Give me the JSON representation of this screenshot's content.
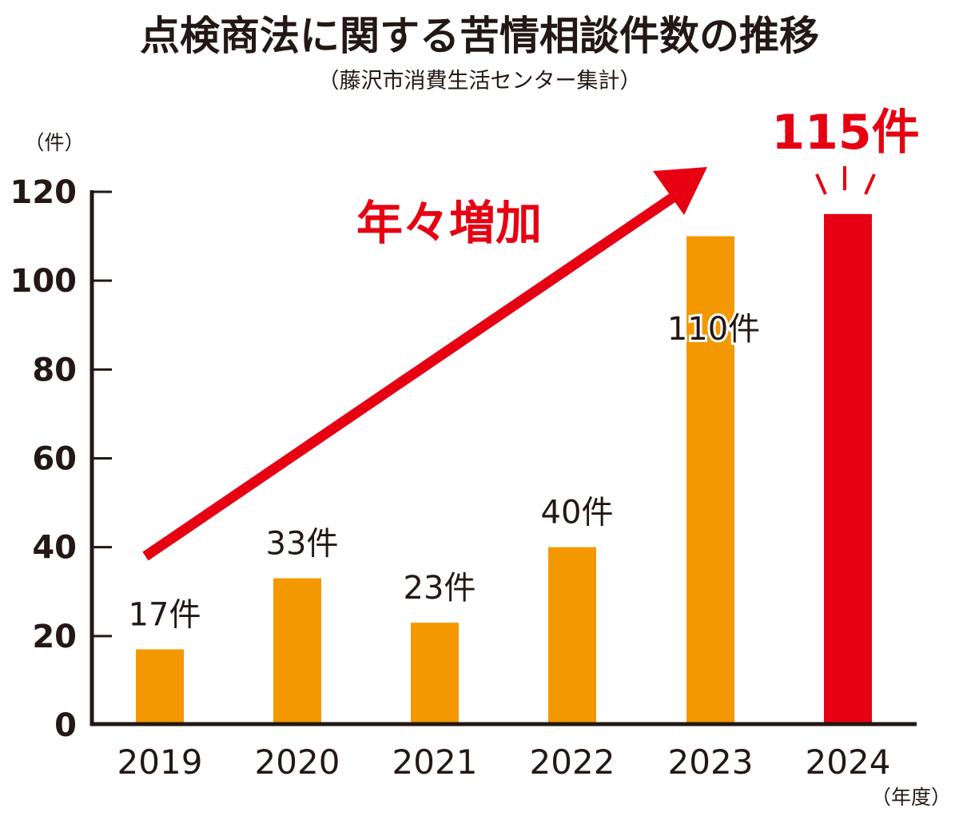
{
  "chart_data": {
    "type": "bar",
    "title": "点検商法に関する苦情相談件数の推移",
    "subtitle": "（藤沢市消費生活センター集計）",
    "ylabel": "（件）",
    "xlabel": "（年度）",
    "ylim": [
      0,
      120
    ],
    "yticks": [
      "0",
      "20",
      "40",
      "60",
      "80",
      "100",
      "120"
    ],
    "ytick_values": [
      0,
      20,
      40,
      60,
      80,
      100,
      120
    ],
    "categories": [
      "2019",
      "2020",
      "2021",
      "2022",
      "2023",
      "2024"
    ],
    "values": [
      17,
      33,
      23,
      40,
      110,
      115
    ],
    "data_labels": [
      "17件",
      "33件",
      "23件",
      "40件",
      "110件",
      "115件"
    ],
    "highlight_index": 5,
    "annotation": "年々増加",
    "grid": false,
    "colors": {
      "bar": "#f39800",
      "highlight": "#e60012",
      "axis": "#231815",
      "arrow": "#e60012"
    }
  }
}
